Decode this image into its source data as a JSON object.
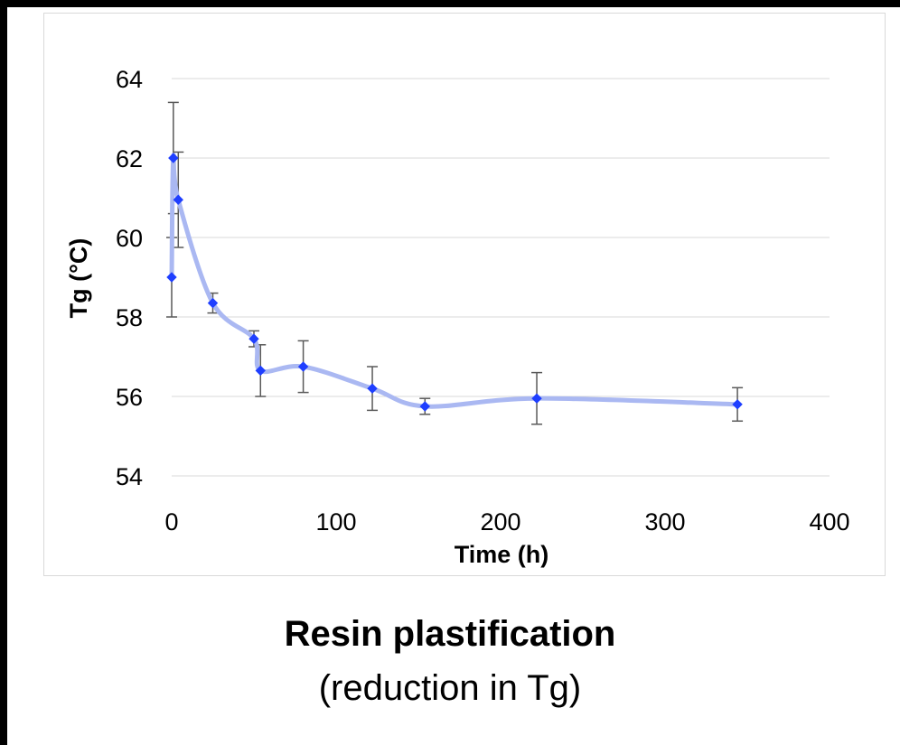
{
  "chart_data": {
    "type": "scatter",
    "xlabel": "Time (h)",
    "ylabel": "Tg (°C)",
    "xlim": [
      0,
      400
    ],
    "ylim": [
      54,
      64
    ],
    "xticks": [
      0,
      100,
      200,
      300,
      400
    ],
    "yticks": [
      54,
      56,
      58,
      60,
      62,
      64
    ],
    "grid": "horizontal",
    "legend": "none",
    "series": [
      {
        "color": "#1f3fff",
        "line_color": "#aab8f2",
        "line": "smoothed",
        "marker": "diamond",
        "points": [
          {
            "x": 0,
            "y": 59.0,
            "err": 1.0
          },
          {
            "x": 1,
            "y": 62.0,
            "err": 1.4
          },
          {
            "x": 4,
            "y": 60.95,
            "err": 1.2
          },
          {
            "x": 25,
            "y": 58.35,
            "err": 0.25
          },
          {
            "x": 50,
            "y": 57.45,
            "err": 0.2
          },
          {
            "x": 54,
            "y": 56.65,
            "err": 0.65
          },
          {
            "x": 80,
            "y": 56.75,
            "err": 0.65
          },
          {
            "x": 122,
            "y": 56.2,
            "err": 0.55
          },
          {
            "x": 154,
            "y": 55.75,
            "err": 0.2
          },
          {
            "x": 222,
            "y": 55.95,
            "err": 0.65
          },
          {
            "x": 344,
            "y": 55.8,
            "err": 0.42
          }
        ]
      }
    ]
  },
  "caption": {
    "title": "Resin plastification",
    "subtitle": "(reduction in Tg)"
  }
}
